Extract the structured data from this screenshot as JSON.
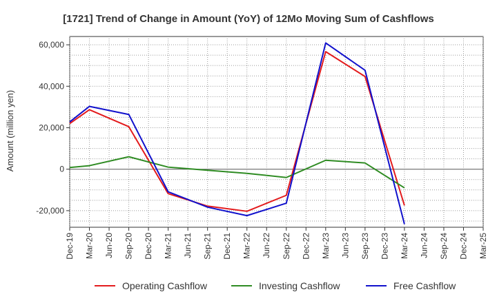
{
  "chart_data": {
    "type": "line",
    "title": "[1721]  Trend of Change in Amount (YoY) of 12Mo Moving Sum of Cashflows",
    "xlabel": "",
    "ylabel": "Amount (million yen)",
    "ylim": [
      -28000,
      64000
    ],
    "yticks": [
      -20000,
      0,
      20000,
      40000,
      60000
    ],
    "ytick_labels": [
      "-20,000",
      "0",
      "20,000",
      "40,000",
      "60,000"
    ],
    "categories": [
      "Dec-19",
      "Mar-20",
      "Jun-20",
      "Sep-20",
      "Dec-20",
      "Mar-21",
      "Jun-21",
      "Sep-21",
      "Dec-21",
      "Mar-22",
      "Jun-22",
      "Sep-22",
      "Dec-22",
      "Mar-23",
      "Jun-23",
      "Sep-23",
      "Dec-23",
      "Mar-24",
      "Jun-24",
      "Sep-24",
      "Dec-24",
      "Mar-25"
    ],
    "grid": true,
    "legend_position": "bottom",
    "series": [
      {
        "name": "Operating Cashflow",
        "color": "#e31a1c",
        "values": [
          22000,
          28700,
          null,
          20500,
          null,
          -11800,
          null,
          -17800,
          null,
          -20300,
          null,
          -12600,
          null,
          56700,
          null,
          44700,
          null,
          -17500,
          null,
          null,
          null,
          null
        ]
      },
      {
        "name": "Investing Cashflow",
        "color": "#2e8b22",
        "values": [
          800,
          1700,
          null,
          6000,
          null,
          1000,
          null,
          -500,
          null,
          -2000,
          null,
          -4000,
          null,
          4300,
          null,
          3000,
          null,
          -9000,
          null,
          null,
          null,
          null
        ]
      },
      {
        "name": "Free Cashflow",
        "color": "#1010cc",
        "values": [
          22800,
          30300,
          null,
          26400,
          null,
          -10900,
          null,
          -18300,
          null,
          -22400,
          null,
          -16400,
          null,
          60900,
          null,
          47700,
          null,
          -26500,
          null,
          null,
          null,
          null
        ]
      }
    ]
  }
}
